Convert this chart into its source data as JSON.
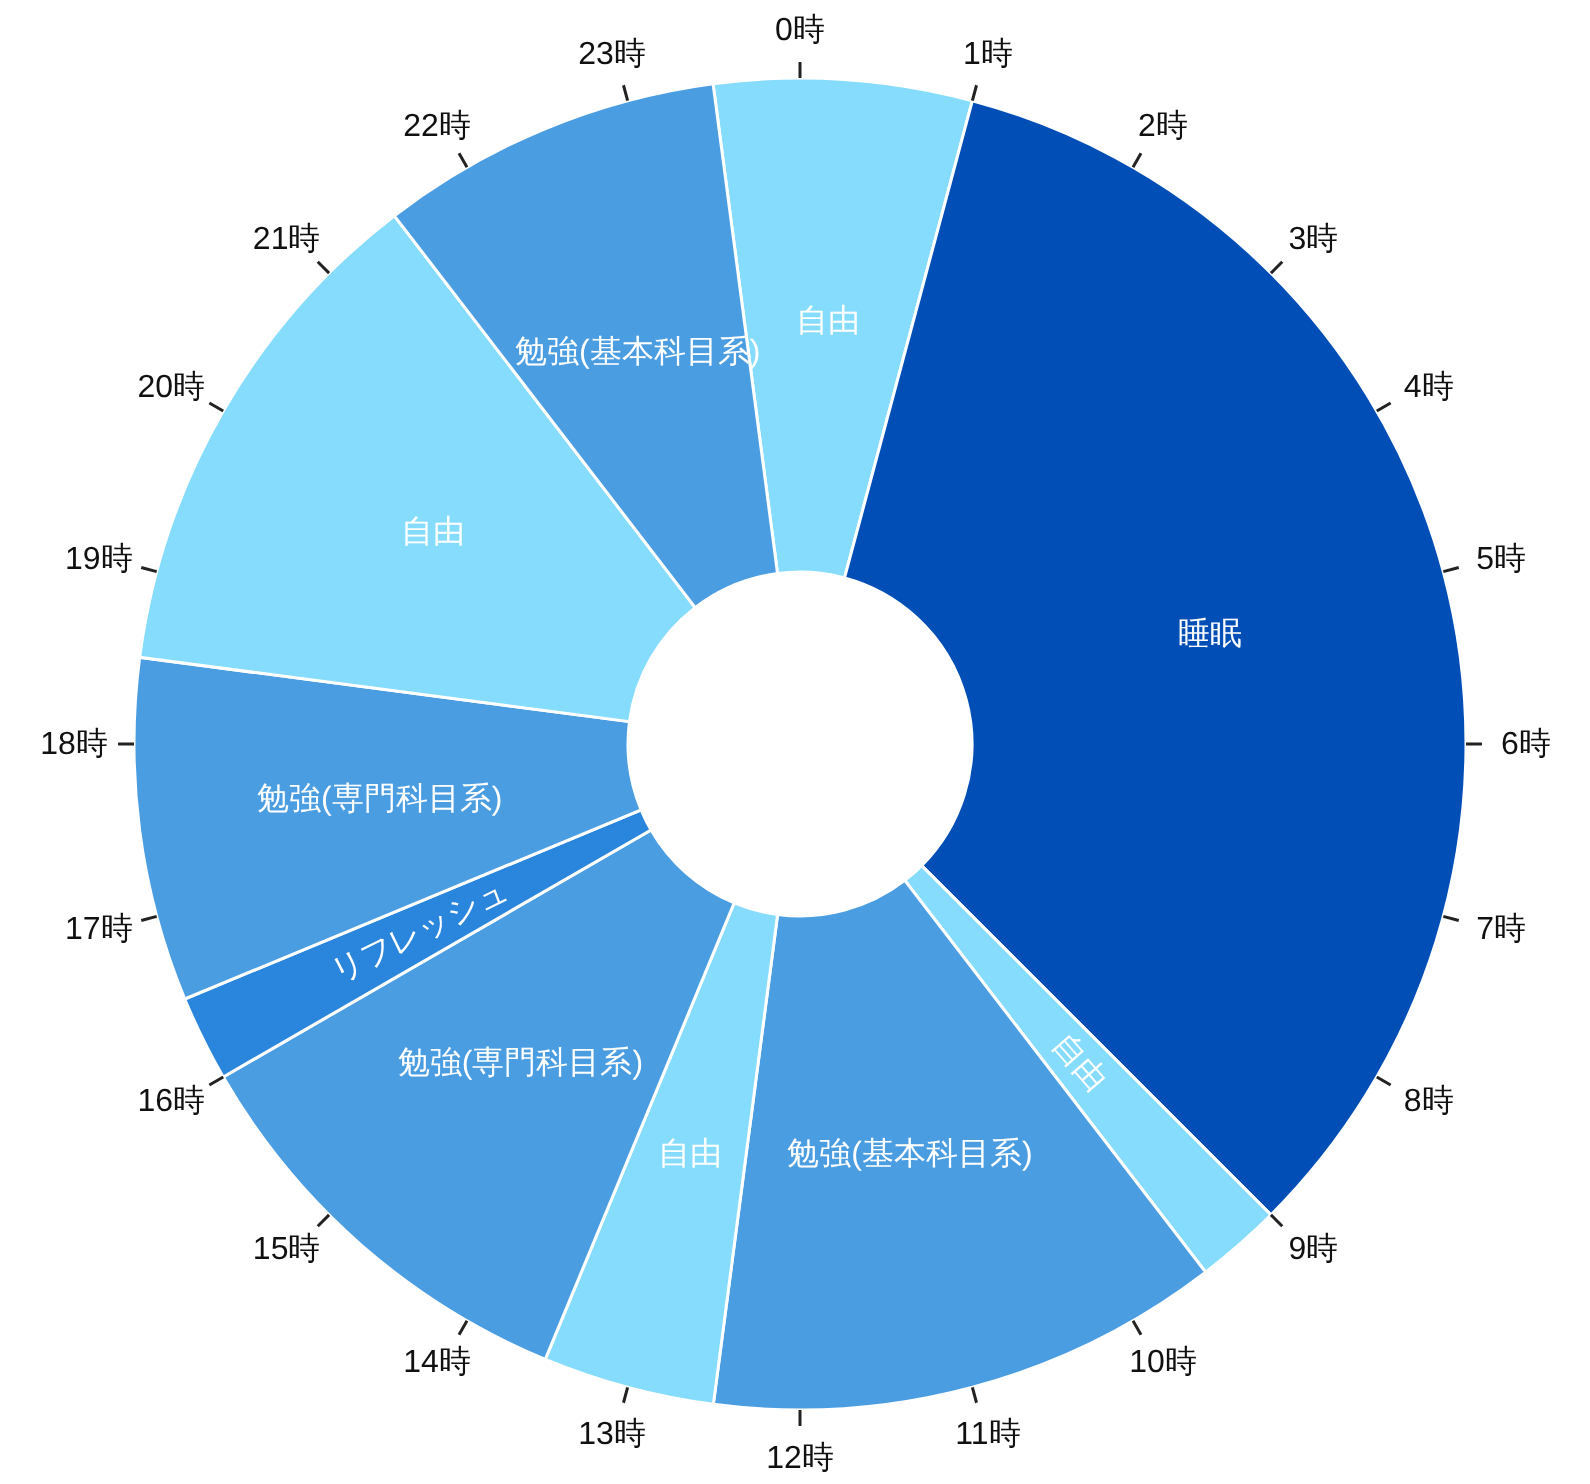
{
  "chart_data": {
    "type": "donut",
    "categories": [
      "自由",
      "睡眠",
      "自由",
      "勉強(基本科目系)",
      "自由",
      "勉強(専門科目系)",
      "リフレッシュ",
      "勉強(専門科目系)",
      "自由",
      "勉強(基本科目系)"
    ],
    "values": [
      6.25,
      33.33,
      2.08,
      12.5,
      4.17,
      10.42,
      2.08,
      8.33,
      12.5,
      8.34
    ],
    "colors": [
      "#86dcfc",
      "#004eb6",
      "#86dcfc",
      "#4b9de2",
      "#86dcfc",
      "#4b9de2",
      "#2a85dc",
      "#4b9de2",
      "#86dcfc",
      "#4b9de2"
    ],
    "annotations": [
      "0時",
      "1時",
      "2時",
      "3時",
      "4時",
      "5時",
      "6時",
      "7時",
      "8時",
      "9時",
      "10時",
      "11時",
      "12時",
      "13時",
      "14時",
      "15時",
      "16時",
      "17時",
      "18時",
      "19時",
      "20時",
      "21時",
      "22時",
      "23時"
    ]
  }
}
